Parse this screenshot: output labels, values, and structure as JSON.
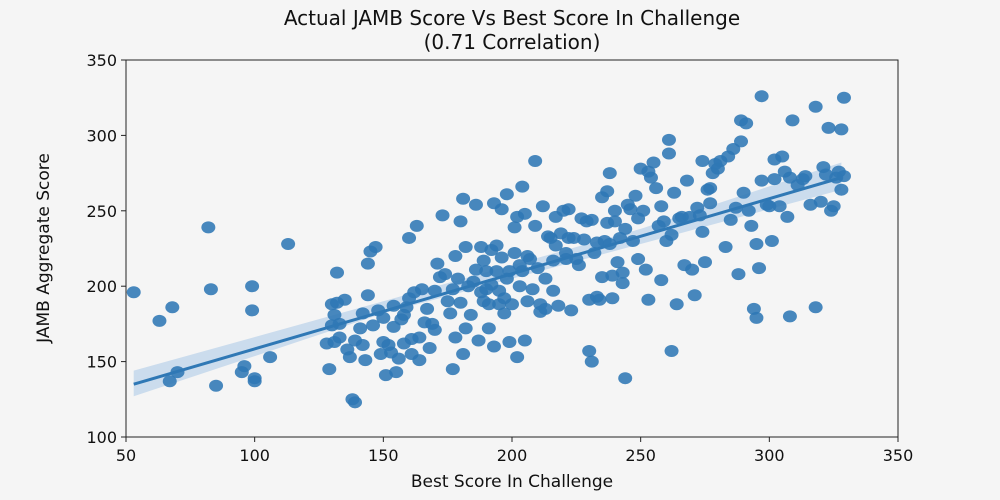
{
  "chart_data": {
    "type": "scatter",
    "title": "Actual JAMB Score Vs Best Score In Challenge",
    "subtitle": "(0.71 Correlation)",
    "xlabel": "Best Score In Challenge",
    "ylabel": "JAMB Aggregate Score",
    "xlim": [
      50,
      350
    ],
    "ylim": [
      100,
      350
    ],
    "x_ticks": [
      50,
      100,
      150,
      200,
      250,
      300,
      350
    ],
    "y_ticks": [
      100,
      150,
      200,
      250,
      300,
      350
    ],
    "grid": false,
    "legend": "none",
    "colors": {
      "points": "#2f78b5",
      "line": "#2f78b5",
      "band": "#bcd3ea"
    },
    "regression": {
      "x": [
        53,
        328
      ],
      "y": [
        135,
        272
      ],
      "ci_band": [
        [
          53,
          127,
          144
        ],
        [
          150,
          182,
          190
        ],
        [
          250,
          228,
          238
        ],
        [
          328,
          264,
          282
        ]
      ]
    },
    "points": [
      [
        53,
        196
      ],
      [
        63,
        177
      ],
      [
        67,
        137
      ],
      [
        68,
        186
      ],
      [
        70,
        143
      ],
      [
        82,
        239
      ],
      [
        83,
        198
      ],
      [
        85,
        134
      ],
      [
        95,
        143
      ],
      [
        96,
        147
      ],
      [
        99,
        200
      ],
      [
        99,
        184
      ],
      [
        100,
        139
      ],
      [
        100,
        137
      ],
      [
        106,
        153
      ],
      [
        113,
        228
      ],
      [
        128,
        162
      ],
      [
        129,
        145
      ],
      [
        130,
        174
      ],
      [
        130,
        188
      ],
      [
        131,
        181
      ],
      [
        131,
        163
      ],
      [
        132,
        189
      ],
      [
        132,
        209
      ],
      [
        133,
        175
      ],
      [
        133,
        166
      ],
      [
        135,
        191
      ],
      [
        136,
        158
      ],
      [
        137,
        153
      ],
      [
        138,
        125
      ],
      [
        139,
        123
      ],
      [
        139,
        164
      ],
      [
        141,
        172
      ],
      [
        142,
        182
      ],
      [
        142,
        161
      ],
      [
        143,
        151
      ],
      [
        144,
        194
      ],
      [
        144,
        215
      ],
      [
        145,
        223
      ],
      [
        146,
        174
      ],
      [
        147,
        226
      ],
      [
        148,
        184
      ],
      [
        149,
        155
      ],
      [
        150,
        179
      ],
      [
        150,
        163
      ],
      [
        151,
        141
      ],
      [
        152,
        161
      ],
      [
        153,
        156
      ],
      [
        154,
        173
      ],
      [
        154,
        187
      ],
      [
        155,
        143
      ],
      [
        156,
        152
      ],
      [
        157,
        178
      ],
      [
        158,
        181
      ],
      [
        158,
        162
      ],
      [
        159,
        186
      ],
      [
        160,
        192
      ],
      [
        160,
        232
      ],
      [
        161,
        165
      ],
      [
        161,
        155
      ],
      [
        162,
        196
      ],
      [
        163,
        240
      ],
      [
        164,
        151
      ],
      [
        164,
        166
      ],
      [
        165,
        198
      ],
      [
        166,
        176
      ],
      [
        167,
        185
      ],
      [
        168,
        159
      ],
      [
        169,
        175
      ],
      [
        170,
        171
      ],
      [
        170,
        197
      ],
      [
        171,
        215
      ],
      [
        172,
        206
      ],
      [
        173,
        247
      ],
      [
        174,
        208
      ],
      [
        175,
        190
      ],
      [
        176,
        182
      ],
      [
        177,
        145
      ],
      [
        177,
        198
      ],
      [
        178,
        166
      ],
      [
        178,
        220
      ],
      [
        179,
        205
      ],
      [
        180,
        189
      ],
      [
        180,
        243
      ],
      [
        181,
        155
      ],
      [
        181,
        258
      ],
      [
        182,
        172
      ],
      [
        182,
        226
      ],
      [
        183,
        200
      ],
      [
        184,
        181
      ],
      [
        185,
        203
      ],
      [
        186,
        211
      ],
      [
        186,
        254
      ],
      [
        187,
        164
      ],
      [
        188,
        196
      ],
      [
        188,
        226
      ],
      [
        189,
        190
      ],
      [
        189,
        217
      ],
      [
        190,
        210
      ],
      [
        190,
        198
      ],
      [
        191,
        188
      ],
      [
        191,
        172
      ],
      [
        192,
        201
      ],
      [
        192,
        224
      ],
      [
        193,
        255
      ],
      [
        193,
        160
      ],
      [
        194,
        227
      ],
      [
        194,
        210
      ],
      [
        195,
        197
      ],
      [
        195,
        188
      ],
      [
        196,
        219
      ],
      [
        196,
        251
      ],
      [
        197,
        192
      ],
      [
        197,
        182
      ],
      [
        198,
        205
      ],
      [
        198,
        261
      ],
      [
        199,
        210
      ],
      [
        199,
        163
      ],
      [
        200,
        188
      ],
      [
        201,
        222
      ],
      [
        201,
        239
      ],
      [
        202,
        246
      ],
      [
        202,
        153
      ],
      [
        203,
        200
      ],
      [
        203,
        214
      ],
      [
        204,
        266
      ],
      [
        204,
        210
      ],
      [
        205,
        164
      ],
      [
        205,
        248
      ],
      [
        206,
        220
      ],
      [
        206,
        190
      ],
      [
        207,
        218
      ],
      [
        208,
        198
      ],
      [
        209,
        283
      ],
      [
        209,
        240
      ],
      [
        210,
        212
      ],
      [
        211,
        188
      ],
      [
        211,
        183
      ],
      [
        212,
        253
      ],
      [
        213,
        205
      ],
      [
        213,
        185
      ],
      [
        214,
        233
      ],
      [
        215,
        232
      ],
      [
        216,
        197
      ],
      [
        216,
        217
      ],
      [
        217,
        246
      ],
      [
        217,
        227
      ],
      [
        218,
        187
      ],
      [
        219,
        235
      ],
      [
        220,
        250
      ],
      [
        221,
        222
      ],
      [
        221,
        218
      ],
      [
        222,
        251
      ],
      [
        222,
        232
      ],
      [
        223,
        184
      ],
      [
        224,
        232
      ],
      [
        225,
        218
      ],
      [
        226,
        214
      ],
      [
        227,
        245
      ],
      [
        228,
        231
      ],
      [
        229,
        243
      ],
      [
        230,
        191
      ],
      [
        230,
        157
      ],
      [
        231,
        150
      ],
      [
        231,
        244
      ],
      [
        232,
        222
      ],
      [
        233,
        229
      ],
      [
        233,
        193
      ],
      [
        234,
        191
      ],
      [
        235,
        259
      ],
      [
        235,
        206
      ],
      [
        236,
        230
      ],
      [
        237,
        263
      ],
      [
        237,
        242
      ],
      [
        238,
        275
      ],
      [
        238,
        228
      ],
      [
        239,
        192
      ],
      [
        239,
        207
      ],
      [
        240,
        243
      ],
      [
        240,
        250
      ],
      [
        241,
        216
      ],
      [
        242,
        232
      ],
      [
        243,
        202
      ],
      [
        243,
        209
      ],
      [
        244,
        139
      ],
      [
        244,
        238
      ],
      [
        245,
        254
      ],
      [
        246,
        251
      ],
      [
        247,
        230
      ],
      [
        248,
        260
      ],
      [
        249,
        218
      ],
      [
        249,
        245
      ],
      [
        250,
        278
      ],
      [
        251,
        250
      ],
      [
        252,
        211
      ],
      [
        253,
        191
      ],
      [
        253,
        276
      ],
      [
        254,
        272
      ],
      [
        255,
        282
      ],
      [
        256,
        265
      ],
      [
        257,
        240
      ],
      [
        258,
        204
      ],
      [
        258,
        253
      ],
      [
        259,
        243
      ],
      [
        260,
        230
      ],
      [
        261,
        288
      ],
      [
        261,
        297
      ],
      [
        262,
        157
      ],
      [
        262,
        234
      ],
      [
        263,
        262
      ],
      [
        264,
        188
      ],
      [
        265,
        245
      ],
      [
        266,
        246
      ],
      [
        267,
        214
      ],
      [
        268,
        270
      ],
      [
        269,
        246
      ],
      [
        270,
        211
      ],
      [
        271,
        194
      ],
      [
        272,
        252
      ],
      [
        273,
        247
      ],
      [
        274,
        236
      ],
      [
        274,
        283
      ],
      [
        275,
        216
      ],
      [
        276,
        264
      ],
      [
        277,
        265
      ],
      [
        277,
        255
      ],
      [
        278,
        275
      ],
      [
        279,
        281
      ],
      [
        280,
        278
      ],
      [
        281,
        283
      ],
      [
        283,
        226
      ],
      [
        284,
        286
      ],
      [
        285,
        244
      ],
      [
        286,
        291
      ],
      [
        287,
        252
      ],
      [
        288,
        208
      ],
      [
        289,
        296
      ],
      [
        289,
        310
      ],
      [
        290,
        262
      ],
      [
        291,
        308
      ],
      [
        292,
        250
      ],
      [
        293,
        240
      ],
      [
        294,
        185
      ],
      [
        295,
        179
      ],
      [
        295,
        228
      ],
      [
        296,
        212
      ],
      [
        297,
        270
      ],
      [
        297,
        326
      ],
      [
        299,
        254
      ],
      [
        300,
        253
      ],
      [
        301,
        230
      ],
      [
        302,
        271
      ],
      [
        302,
        284
      ],
      [
        304,
        253
      ],
      [
        305,
        286
      ],
      [
        306,
        276
      ],
      [
        307,
        246
      ],
      [
        308,
        180
      ],
      [
        308,
        272
      ],
      [
        309,
        310
      ],
      [
        311,
        267
      ],
      [
        313,
        271
      ],
      [
        314,
        273
      ],
      [
        316,
        254
      ],
      [
        318,
        186
      ],
      [
        318,
        319
      ],
      [
        320,
        256
      ],
      [
        321,
        279
      ],
      [
        322,
        274
      ],
      [
        323,
        305
      ],
      [
        324,
        250
      ],
      [
        325,
        253
      ],
      [
        326,
        272
      ],
      [
        327,
        276
      ],
      [
        328,
        264
      ],
      [
        328,
        304
      ],
      [
        329,
        325
      ],
      [
        329,
        273
      ]
    ]
  }
}
